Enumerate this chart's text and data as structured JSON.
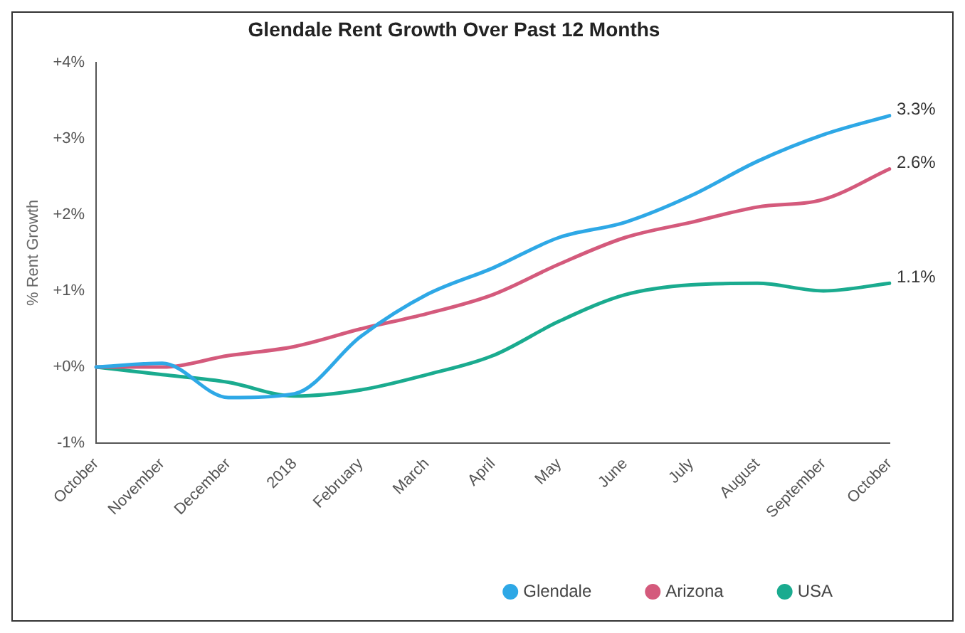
{
  "chart_data": {
    "type": "line",
    "title": "Glendale Rent Growth Over Past 12 Months",
    "ylabel": "% Rent Growth",
    "categories": [
      "October",
      "November",
      "December",
      "2018",
      "February",
      "March",
      "April",
      "May",
      "June",
      "July",
      "August",
      "September",
      "October"
    ],
    "ylim": [
      -1,
      4
    ],
    "yticks": [
      {
        "value": -1,
        "label": "-1%"
      },
      {
        "value": 0,
        "label": "+0%"
      },
      {
        "value": 1,
        "label": "+1%"
      },
      {
        "value": 2,
        "label": "+2%"
      },
      {
        "value": 3,
        "label": "+3%"
      },
      {
        "value": 4,
        "label": "+4%"
      }
    ],
    "grid": false,
    "legend": "bottom right",
    "marker": "none",
    "line_style": "solid",
    "series": [
      {
        "name": "Glendale",
        "color": "#2ea8e6",
        "values": [
          0,
          0.05,
          -0.4,
          -0.35,
          0.4,
          0.95,
          1.3,
          1.7,
          1.9,
          2.25,
          2.7,
          3.05,
          3.3
        ],
        "value_labels": [
          null,
          null,
          null,
          null,
          null,
          null,
          null,
          null,
          null,
          null,
          null,
          null,
          "3.3%"
        ]
      },
      {
        "name": "Arizona",
        "color": "#d45a7c",
        "values": [
          0,
          0,
          0.15,
          0.27,
          0.5,
          0.7,
          0.95,
          1.35,
          1.7,
          1.9,
          2.1,
          2.2,
          2.6
        ],
        "value_labels": [
          null,
          null,
          null,
          null,
          null,
          null,
          null,
          null,
          null,
          null,
          null,
          null,
          "2.6%"
        ]
      },
      {
        "name": "USA",
        "color": "#1aab8f",
        "values": [
          0,
          -0.1,
          -0.2,
          -0.38,
          -0.3,
          -0.1,
          0.15,
          0.6,
          0.95,
          1.08,
          1.1,
          1.0,
          1.1
        ],
        "value_labels": [
          null,
          null,
          null,
          null,
          null,
          null,
          null,
          null,
          null,
          null,
          null,
          null,
          "1.1%"
        ]
      }
    ]
  }
}
